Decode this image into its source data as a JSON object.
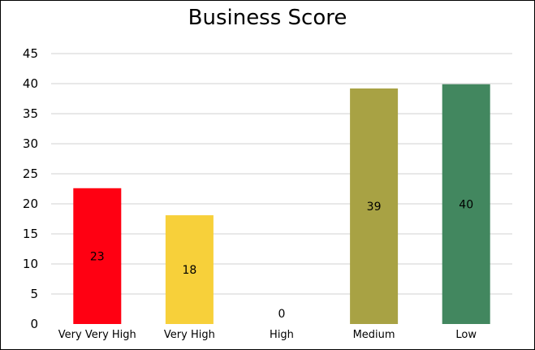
{
  "chart_data": {
    "type": "bar",
    "title": "Business Score",
    "xlabel": "",
    "ylabel": "",
    "categories": [
      "Very Very High",
      "Very High",
      "High",
      "Medium",
      "Low"
    ],
    "values": [
      22.6,
      18.1,
      0,
      39.2,
      39.9
    ],
    "data_labels": [
      "23",
      "18",
      "0",
      "39",
      "40"
    ],
    "colors": [
      "#ff0012",
      "#f7d03a",
      "#ffffff",
      "#a8a244",
      "#42875f"
    ],
    "ylim": [
      0,
      45
    ],
    "yticks": [
      0,
      5,
      10,
      15,
      20,
      25,
      30,
      35,
      40,
      45
    ],
    "gridlines": true,
    "gridline_color": "#d0d0d0",
    "legend": "none"
  }
}
